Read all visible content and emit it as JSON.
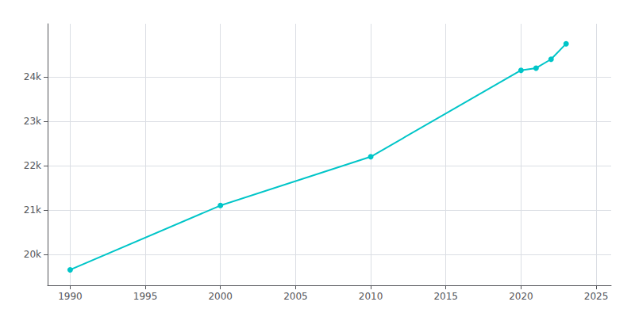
{
  "chart_data": {
    "type": "line",
    "x": [
      1990,
      2000,
      2010,
      2020,
      2021,
      2022,
      2023
    ],
    "values": [
      19650,
      21100,
      22200,
      24150,
      24200,
      24400,
      24750
    ],
    "color": "#00C5C8",
    "marker": "circle",
    "xlim": [
      1988.5,
      2026
    ],
    "xticks": [
      1990,
      1995,
      2000,
      2005,
      2010,
      2015,
      2020,
      2025
    ],
    "ylim": [
      19300,
      25200
    ],
    "yticks": [
      {
        "value": 20000,
        "label": "20k"
      },
      {
        "value": 21000,
        "label": "21k"
      },
      {
        "value": 22000,
        "label": "22k"
      },
      {
        "value": 23000,
        "label": "23k"
      },
      {
        "value": 24000,
        "label": "24k"
      }
    ],
    "grid": true
  }
}
